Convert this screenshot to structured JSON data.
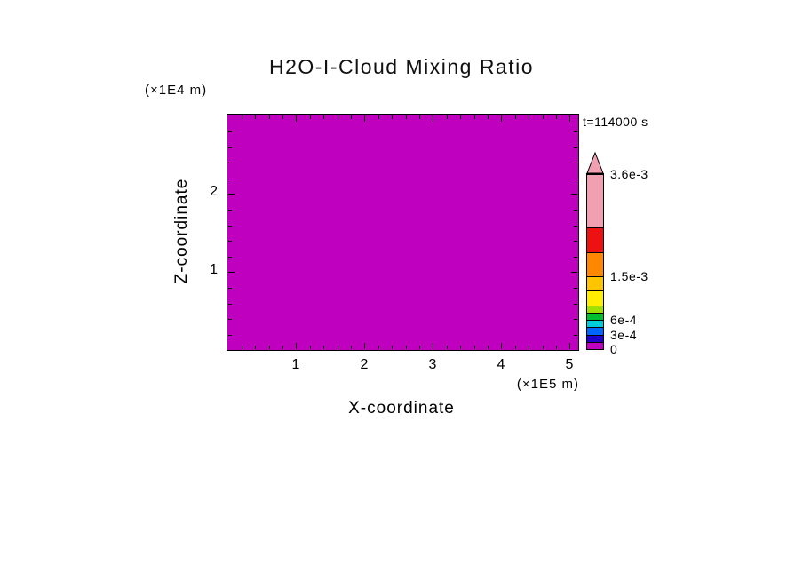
{
  "header": {
    "title": "H2O-I-Cloud Mixing Ratio",
    "time": "t=114000 s"
  },
  "axis_labels": {
    "x": "X-coordinate",
    "x_unit": "(×1E5 m)",
    "y": "Z-coordinate",
    "y_unit": "(×1E4 m)"
  },
  "chart_data": {
    "type": "heatmap",
    "title": "H2O-I-Cloud Mixing Ratio",
    "xlabel": "X-coordinate (×1E5 m)",
    "ylabel": "Z-coordinate (×1E4 m)",
    "time_label": "t=114000 s",
    "xlim": [
      0,
      5.13
    ],
    "ylim": [
      0,
      3.01
    ],
    "x_major_ticks": [
      1,
      2,
      3,
      4,
      5
    ],
    "y_major_ticks": [
      1,
      2
    ],
    "minor_tick_step": 0.2,
    "grid": false,
    "field": "uniform",
    "uniform_value": 0,
    "field_color": "#bf00bf",
    "colorbar": {
      "min": 0,
      "max": 0.0036,
      "overflow_color": "#f0a0b0",
      "labels": [
        {
          "text": "3.6e-3",
          "value": 0.0036
        },
        {
          "text": "1.5e-3",
          "value": 0.0015
        },
        {
          "text": "6e-4",
          "value": 0.0006
        },
        {
          "text": "3e-4",
          "value": 0.0003
        },
        {
          "text": "0",
          "value": 0
        }
      ],
      "segments": [
        {
          "from": 0,
          "to": 0.00015,
          "color": "#bf00bf"
        },
        {
          "from": 0.00015,
          "to": 0.0003,
          "color": "#2200cc"
        },
        {
          "from": 0.0003,
          "to": 0.00045,
          "color": "#0066ff"
        },
        {
          "from": 0.00045,
          "to": 0.0006,
          "color": "#00ccdd"
        },
        {
          "from": 0.0006,
          "to": 0.00075,
          "color": "#00c030"
        },
        {
          "from": 0.00075,
          "to": 0.0009,
          "color": "#a0e000"
        },
        {
          "from": 0.0009,
          "to": 0.0012,
          "color": "#ffee00"
        },
        {
          "from": 0.0012,
          "to": 0.0015,
          "color": "#ffc400"
        },
        {
          "from": 0.0015,
          "to": 0.002,
          "color": "#ff8800"
        },
        {
          "from": 0.002,
          "to": 0.0025,
          "color": "#ee1111"
        },
        {
          "from": 0.0025,
          "to": 0.0036,
          "color": "#f0a0b0"
        }
      ]
    }
  }
}
